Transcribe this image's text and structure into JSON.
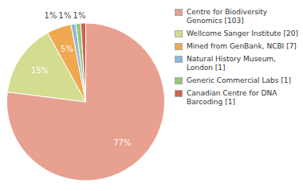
{
  "chart_data": {
    "type": "pie",
    "categories": [
      "Centre for Biodiversity\nGenomics [103]",
      "Wellcome Sanger Institute [20]",
      "Mined from GenBank, NCBI [7]",
      "Natural History Museum, London [1]",
      "Generic Commercial Labs [1]",
      "Canadian Centre for DNA\nBarcoding [1]"
    ],
    "values": [
      77,
      15,
      5,
      1,
      1,
      1
    ],
    "value_labels": [
      "77%",
      "15%",
      "5%",
      "1%",
      "1%",
      "1%"
    ],
    "colors": [
      "#e8a090",
      "#d4dc90",
      "#f0a850",
      "#90b8d8",
      "#98c878",
      "#d06050"
    ],
    "data_labels": true,
    "legend": "upper right"
  }
}
